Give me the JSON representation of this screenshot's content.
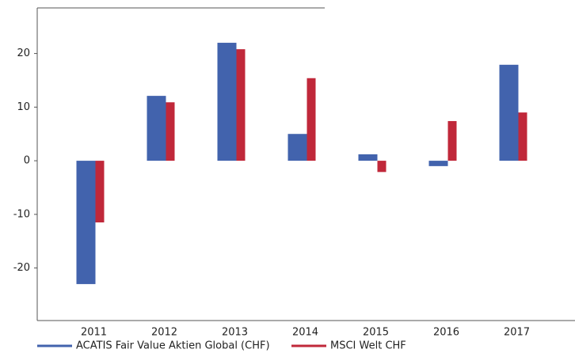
{
  "chart_data": {
    "type": "bar",
    "categories": [
      "2011",
      "2012",
      "2013",
      "2014",
      "2015",
      "2016",
      "2017"
    ],
    "series": [
      {
        "name": "ACATIS Fair Value Aktien Global (CHF)",
        "color": "#4263ad",
        "values": [
          -23,
          12.1,
          22.0,
          5.0,
          1.2,
          -1.0,
          17.9
        ]
      },
      {
        "name": "MSCI Welt CHF",
        "color": "#c0283a",
        "values": [
          -11.5,
          10.9,
          20.8,
          15.4,
          -2.1,
          7.4,
          9.0
        ]
      }
    ],
    "ylim": [
      -29.8,
      28.5
    ],
    "yticks": [
      -20,
      -10,
      0,
      10,
      20
    ],
    "grid": false,
    "legend": "bottom"
  }
}
